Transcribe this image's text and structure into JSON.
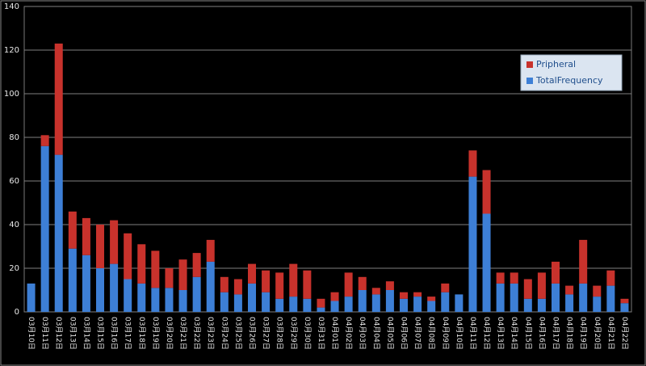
{
  "chart_data": {
    "type": "stacked_bar",
    "categories": [
      "03月10日",
      "03月11日",
      "03月12日",
      "03月13日",
      "03月14日",
      "03月15日",
      "03月16日",
      "03月17日",
      "03月18日",
      "03月19日",
      "03月20日",
      "03月21日",
      "03月22日",
      "03月23日",
      "03月24日",
      "03月25日",
      "03月26日",
      "03月27日",
      "03月28日",
      "03月29日",
      "03月30日",
      "03月31日",
      "04月01日",
      "04月02日",
      "04月03日",
      "04月04日",
      "04月05日",
      "04月06日",
      "04月07日",
      "04月08日",
      "04月09日",
      "04月10日",
      "04月11日",
      "04月12日",
      "04月13日",
      "04月14日",
      "04月15日",
      "04月16日",
      "04月17日",
      "04月18日",
      "04月19日",
      "04月20日",
      "04月21日",
      "04月22日"
    ],
    "series": [
      {
        "name": "TotalFrequency",
        "color": "#3d7fd6",
        "values": [
          13,
          76,
          72,
          29,
          26,
          20,
          22,
          15,
          13,
          11,
          11,
          10,
          16,
          23,
          9,
          8,
          13,
          9,
          6,
          7,
          6,
          2,
          5,
          7,
          10,
          8,
          10,
          6,
          7,
          5,
          9,
          8,
          62,
          45,
          13,
          13,
          6,
          6,
          13,
          8,
          13,
          7,
          12,
          4
        ]
      },
      {
        "name": "Pripheral",
        "color": "#c8322c",
        "values": [
          0,
          5,
          51,
          17,
          17,
          20,
          20,
          21,
          18,
          17,
          9,
          14,
          11,
          10,
          7,
          7,
          9,
          10,
          12,
          15,
          13,
          4,
          4,
          11,
          6,
          3,
          4,
          3,
          2,
          2,
          4,
          0,
          12,
          20,
          5,
          5,
          9,
          12,
          10,
          4,
          20,
          5,
          7,
          2
        ]
      }
    ],
    "ylim": [
      0,
      140
    ],
    "yticks": [
      0,
      20,
      40,
      60,
      80,
      100,
      120,
      140
    ],
    "grid": true,
    "legend": "upper right"
  }
}
